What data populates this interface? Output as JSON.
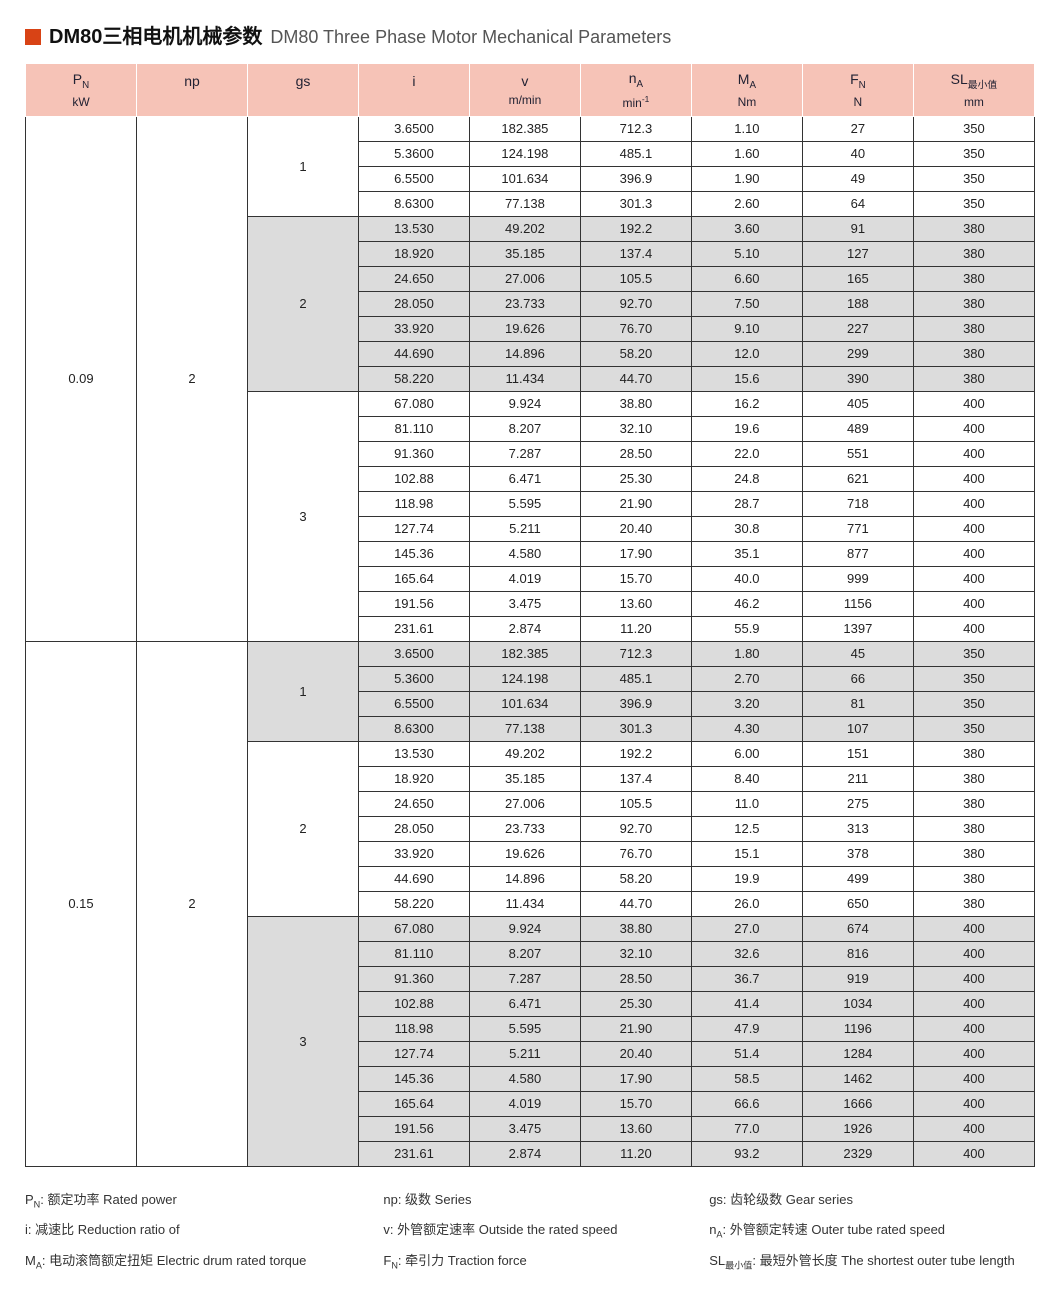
{
  "title": {
    "cn": "DM80三相电机机械参数",
    "en": "DM80 Three Phase Motor Mechanical Parameters"
  },
  "headers": {
    "pn": "P",
    "pn_sub": "N",
    "pn_unit": "kW",
    "np": "np",
    "gs": "gs",
    "i": "i",
    "v": "v",
    "v_unit": "m/min",
    "na": "n",
    "na_sub": "A",
    "na_unit": "min",
    "na_sup": "-1",
    "ma": "M",
    "ma_sub": "A",
    "ma_unit": "Nm",
    "fn": "F",
    "fn_sub": "N",
    "fn_unit": "N",
    "sl": "SL",
    "sl_sub": "最小值",
    "sl_unit": "mm"
  },
  "colors": {
    "header_bg": "#f6c3b7",
    "shade_bg": "#dcdcdc",
    "marker": "#d84315"
  },
  "blocks": [
    {
      "pn": "0.09",
      "np": "2",
      "groups": [
        {
          "gs": "1",
          "shaded": false,
          "rows": [
            [
              "3.6500",
              "182.385",
              "712.3",
              "1.10",
              "27",
              "350"
            ],
            [
              "5.3600",
              "124.198",
              "485.1",
              "1.60",
              "40",
              "350"
            ],
            [
              "6.5500",
              "101.634",
              "396.9",
              "1.90",
              "49",
              "350"
            ],
            [
              "8.6300",
              "77.138",
              "301.3",
              "2.60",
              "64",
              "350"
            ]
          ]
        },
        {
          "gs": "2",
          "shaded": true,
          "rows": [
            [
              "13.530",
              "49.202",
              "192.2",
              "3.60",
              "91",
              "380"
            ],
            [
              "18.920",
              "35.185",
              "137.4",
              "5.10",
              "127",
              "380"
            ],
            [
              "24.650",
              "27.006",
              "105.5",
              "6.60",
              "165",
              "380"
            ],
            [
              "28.050",
              "23.733",
              "92.70",
              "7.50",
              "188",
              "380"
            ],
            [
              "33.920",
              "19.626",
              "76.70",
              "9.10",
              "227",
              "380"
            ],
            [
              "44.690",
              "14.896",
              "58.20",
              "12.0",
              "299",
              "380"
            ],
            [
              "58.220",
              "11.434",
              "44.70",
              "15.6",
              "390",
              "380"
            ]
          ]
        },
        {
          "gs": "3",
          "shaded": false,
          "rows": [
            [
              "67.080",
              "9.924",
              "38.80",
              "16.2",
              "405",
              "400"
            ],
            [
              "81.110",
              "8.207",
              "32.10",
              "19.6",
              "489",
              "400"
            ],
            [
              "91.360",
              "7.287",
              "28.50",
              "22.0",
              "551",
              "400"
            ],
            [
              "102.88",
              "6.471",
              "25.30",
              "24.8",
              "621",
              "400"
            ],
            [
              "118.98",
              "5.595",
              "21.90",
              "28.7",
              "718",
              "400"
            ],
            [
              "127.74",
              "5.211",
              "20.40",
              "30.8",
              "771",
              "400"
            ],
            [
              "145.36",
              "4.580",
              "17.90",
              "35.1",
              "877",
              "400"
            ],
            [
              "165.64",
              "4.019",
              "15.70",
              "40.0",
              "999",
              "400"
            ],
            [
              "191.56",
              "3.475",
              "13.60",
              "46.2",
              "1156",
              "400"
            ],
            [
              "231.61",
              "2.874",
              "11.20",
              "55.9",
              "1397",
              "400"
            ]
          ]
        }
      ]
    },
    {
      "pn": "0.15",
      "np": "2",
      "groups": [
        {
          "gs": "1",
          "shaded": true,
          "rows": [
            [
              "3.6500",
              "182.385",
              "712.3",
              "1.80",
              "45",
              "350"
            ],
            [
              "5.3600",
              "124.198",
              "485.1",
              "2.70",
              "66",
              "350"
            ],
            [
              "6.5500",
              "101.634",
              "396.9",
              "3.20",
              "81",
              "350"
            ],
            [
              "8.6300",
              "77.138",
              "301.3",
              "4.30",
              "107",
              "350"
            ]
          ]
        },
        {
          "gs": "2",
          "shaded": false,
          "rows": [
            [
              "13.530",
              "49.202",
              "192.2",
              "6.00",
              "151",
              "380"
            ],
            [
              "18.920",
              "35.185",
              "137.4",
              "8.40",
              "211",
              "380"
            ],
            [
              "24.650",
              "27.006",
              "105.5",
              "11.0",
              "275",
              "380"
            ],
            [
              "28.050",
              "23.733",
              "92.70",
              "12.5",
              "313",
              "380"
            ],
            [
              "33.920",
              "19.626",
              "76.70",
              "15.1",
              "378",
              "380"
            ],
            [
              "44.690",
              "14.896",
              "58.20",
              "19.9",
              "499",
              "380"
            ],
            [
              "58.220",
              "11.434",
              "44.70",
              "26.0",
              "650",
              "380"
            ]
          ]
        },
        {
          "gs": "3",
          "shaded": true,
          "rows": [
            [
              "67.080",
              "9.924",
              "38.80",
              "27.0",
              "674",
              "400"
            ],
            [
              "81.110",
              "8.207",
              "32.10",
              "32.6",
              "816",
              "400"
            ],
            [
              "91.360",
              "7.287",
              "28.50",
              "36.7",
              "919",
              "400"
            ],
            [
              "102.88",
              "6.471",
              "25.30",
              "41.4",
              "1034",
              "400"
            ],
            [
              "118.98",
              "5.595",
              "21.90",
              "47.9",
              "1196",
              "400"
            ],
            [
              "127.74",
              "5.211",
              "20.40",
              "51.4",
              "1284",
              "400"
            ],
            [
              "145.36",
              "4.580",
              "17.90",
              "58.5",
              "1462",
              "400"
            ],
            [
              "165.64",
              "4.019",
              "15.70",
              "66.6",
              "1666",
              "400"
            ],
            [
              "191.56",
              "3.475",
              "13.60",
              "77.0",
              "1926",
              "400"
            ],
            [
              "231.61",
              "2.874",
              "11.20",
              "93.2",
              "2329",
              "400"
            ]
          ]
        }
      ]
    }
  ],
  "legend": {
    "r1c1_a": "P",
    "r1c1_sub": "N",
    "r1c1_b": ": 额定功率 Rated power",
    "r1c2": "np: 级数 Series",
    "r1c3": "gs: 齿轮级数 Gear series",
    "r2c1": "i: 减速比 Reduction ratio of",
    "r2c2": "v: 外管额定速率 Outside the rated speed",
    "r2c3_a": "n",
    "r2c3_sub": "A",
    "r2c3_b": ": 外管额定转速 Outer tube rated speed",
    "r3c1_a": "M",
    "r3c1_sub": "A",
    "r3c1_b": ": 电动滚筒额定扭矩 Electric drum rated torque",
    "r3c2_a": "F",
    "r3c2_sub": "N",
    "r3c2_b": ": 牵引力 Traction force",
    "r3c3_a": "SL",
    "r3c3_sub": "最小值",
    "r3c3_b": ": 最短外管长度 The shortest outer tube length"
  }
}
